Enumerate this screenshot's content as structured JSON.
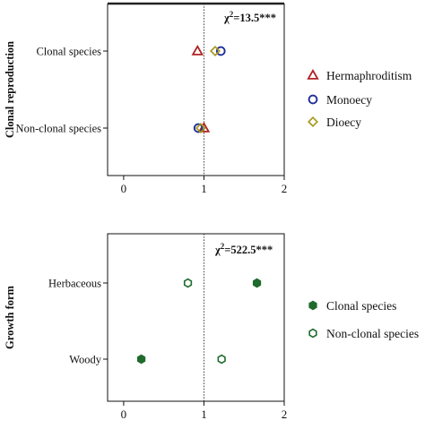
{
  "chart_data": [
    {
      "type": "scatter",
      "ylabel": "Clonal reproduction",
      "categories": [
        "Clonal species",
        "Non-clonal species"
      ],
      "xlim": [
        -0.2,
        2
      ],
      "xticks": [
        "0",
        "1",
        "2"
      ],
      "reference_x": 1,
      "annotation": {
        "base": "χ",
        "sup": "2",
        "rest": "=13.5***"
      },
      "series": [
        {
          "name": "Hermaphroditism",
          "marker": "triangle",
          "color": "#b22222",
          "values": [
            0.92,
            1.0
          ]
        },
        {
          "name": "Monoecy",
          "marker": "circle",
          "color": "#1f2f9a",
          "values": [
            1.21,
            0.93
          ]
        },
        {
          "name": "Dioecy",
          "marker": "diamond",
          "color": "#a89a1c",
          "values": [
            1.14,
            0.96
          ]
        }
      ],
      "legend": "right"
    },
    {
      "type": "scatter",
      "ylabel": "Growth form",
      "categories": [
        "Herbaceous",
        "Woody"
      ],
      "xlim": [
        -0.2,
        2
      ],
      "xticks": [
        "0",
        "1",
        "2"
      ],
      "reference_x": 1,
      "annotation": {
        "base": "χ",
        "sup": "2",
        "rest": "=522.5***"
      },
      "series": [
        {
          "name": "Clonal species",
          "marker": "filled-hexagon",
          "color": "#1e6b2c",
          "values": [
            1.66,
            0.22
          ]
        },
        {
          "name": "Non-clonal species",
          "marker": "hexagon",
          "color": "#1e6b2c",
          "values": [
            0.8,
            1.22
          ]
        }
      ],
      "legend": "right"
    }
  ]
}
